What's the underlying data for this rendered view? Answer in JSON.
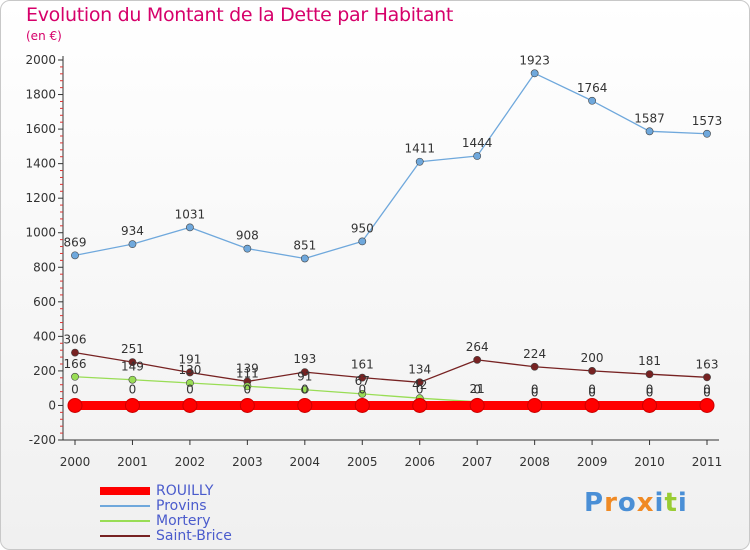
{
  "title": "Evolution du Montant de la Dette par Habitant",
  "unit_label": "(en €)",
  "logo_text": "Proxiti",
  "chart_data": {
    "type": "line",
    "title": "Evolution du Montant de la Dette par Habitant",
    "x": [
      "2000",
      "2001",
      "2002",
      "2003",
      "2004",
      "2005",
      "2006",
      "2007",
      "2008",
      "2009",
      "2010",
      "2011"
    ],
    "ylim": [
      -200,
      2000
    ],
    "yticks": [
      -200,
      0,
      200,
      400,
      600,
      800,
      1000,
      1200,
      1400,
      1600,
      1800,
      2000
    ],
    "grid": false,
    "legend_position": "bottom-left",
    "series": [
      {
        "name": "ROUILLY",
        "color": "#ff0000",
        "values": [
          0,
          0,
          0,
          0,
          0,
          0,
          0,
          0,
          0,
          0,
          0,
          0
        ]
      },
      {
        "name": "Provins",
        "color": "#6fa8dc",
        "values": [
          869,
          934,
          1031,
          908,
          851,
          950,
          1411,
          1444,
          1923,
          1764,
          1587,
          1573
        ]
      },
      {
        "name": "Mortery",
        "color": "#99dd55",
        "values": [
          166,
          149,
          130,
          111,
          91,
          67,
          42,
          21,
          0,
          0,
          0,
          0
        ]
      },
      {
        "name": "Saint-Brice",
        "color": "#772222",
        "values": [
          306,
          251,
          191,
          139,
          193,
          161,
          134,
          264,
          224,
          200,
          181,
          163
        ]
      }
    ]
  }
}
